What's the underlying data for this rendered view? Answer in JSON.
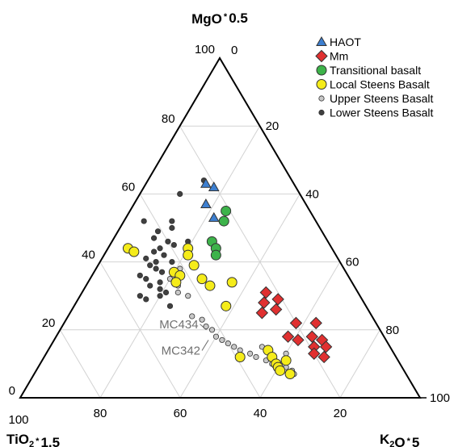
{
  "chart_data": {
    "type": "scatter",
    "subtype": "ternary",
    "title": "",
    "vertices": {
      "top": {
        "label": "MgO",
        "suffix": "0.5"
      },
      "left": {
        "label": "TiO",
        "sub": "2",
        "suffix": "1.5"
      },
      "right": {
        "label": "K",
        "sub": "2",
        "label2": "O",
        "suffix": "5"
      }
    },
    "grid": true,
    "axes": {
      "left_edge_ticks": [
        "0",
        "20",
        "40",
        "60",
        "80",
        "100"
      ],
      "right_edge_ticks": [
        "0",
        "20",
        "40",
        "60",
        "80",
        "100"
      ],
      "bottom_edge_ticks": [
        "100",
        "80",
        "60",
        "40",
        "20"
      ]
    },
    "legend_position": "top-right",
    "series": [
      {
        "name": "HAOT",
        "marker": "triangle",
        "color": "#3d7fd0",
        "points": [
          {
            "mgo": 63,
            "k2o": 15
          },
          {
            "mgo": 62,
            "k2o": 17.5
          },
          {
            "mgo": 57,
            "k2o": 18
          },
          {
            "mgo": 53,
            "k2o": 22
          }
        ]
      },
      {
        "name": "Mm",
        "marker": "diamond",
        "color": "#e03030",
        "points": [
          {
            "mgo": 31,
            "k2o": 46
          },
          {
            "mgo": 28,
            "k2o": 47
          },
          {
            "mgo": 29,
            "k2o": 50
          },
          {
            "mgo": 26,
            "k2o": 51
          },
          {
            "mgo": 25,
            "k2o": 48
          },
          {
            "mgo": 22,
            "k2o": 58
          },
          {
            "mgo": 22,
            "k2o": 63
          },
          {
            "mgo": 18,
            "k2o": 58
          },
          {
            "mgo": 17,
            "k2o": 61
          },
          {
            "mgo": 18,
            "k2o": 64
          },
          {
            "mgo": 17,
            "k2o": 67
          },
          {
            "mgo": 15,
            "k2o": 66
          },
          {
            "mgo": 13,
            "k2o": 67
          },
          {
            "mgo": 15,
            "k2o": 69
          },
          {
            "mgo": 12,
            "k2o": 70
          }
        ]
      },
      {
        "name": "Transitional basalt",
        "marker": "circle",
        "color": "#3db34a",
        "points": [
          {
            "mgo": 55,
            "k2o": 24
          },
          {
            "mgo": 52,
            "k2o": 25
          },
          {
            "mgo": 46,
            "k2o": 25
          },
          {
            "mgo": 44,
            "k2o": 27
          },
          {
            "mgo": 42,
            "k2o": 28
          }
        ]
      },
      {
        "name": "Local Steens Basalt",
        "marker": "circle",
        "color": "#f5ec1a",
        "points": [
          {
            "mgo": 44,
            "k2o": 5
          },
          {
            "mgo": 43,
            "k2o": 7
          },
          {
            "mgo": 44,
            "k2o": 20
          },
          {
            "mgo": 42,
            "k2o": 21
          },
          {
            "mgo": 39,
            "k2o": 24
          },
          {
            "mgo": 37,
            "k2o": 20
          },
          {
            "mgo": 36,
            "k2o": 22
          },
          {
            "mgo": 34,
            "k2o": 22
          },
          {
            "mgo": 35,
            "k2o": 28
          },
          {
            "mgo": 33,
            "k2o": 31
          },
          {
            "mgo": 34,
            "k2o": 36
          },
          {
            "mgo": 27,
            "k2o": 38
          },
          {
            "mgo": 12,
            "k2o": 49
          },
          {
            "mgo": 14,
            "k2o": 55
          },
          {
            "mgo": 12,
            "k2o": 57
          },
          {
            "mgo": 10,
            "k2o": 59
          },
          {
            "mgo": 9,
            "k2o": 60
          },
          {
            "mgo": 8,
            "k2o": 61
          },
          {
            "mgo": 11,
            "k2o": 61
          },
          {
            "mgo": 7,
            "k2o": 64
          }
        ]
      },
      {
        "name": "Upper  Steens Basalt",
        "marker": "circle-small",
        "color": "#c8c8c8",
        "points": [
          {
            "mgo": 38,
            "k2o": 21
          },
          {
            "mgo": 35,
            "k2o": 20
          },
          {
            "mgo": 33,
            "k2o": 23
          },
          {
            "mgo": 31,
            "k2o": 24
          },
          {
            "mgo": 30,
            "k2o": 27
          },
          {
            "mgo": 24,
            "k2o": 31
          },
          {
            "mgo": 23,
            "k2o": 34
          },
          {
            "mgo": 21,
            "k2o": 36
          },
          {
            "mgo": 20,
            "k2o": 38
          },
          {
            "mgo": 18,
            "k2o": 40
          },
          {
            "mgo": 17,
            "k2o": 42
          },
          {
            "mgo": 16,
            "k2o": 44
          },
          {
            "mgo": 15,
            "k2o": 46
          },
          {
            "mgo": 14,
            "k2o": 48
          },
          {
            "mgo": 13,
            "k2o": 51
          },
          {
            "mgo": 12,
            "k2o": 53
          },
          {
            "mgo": 11,
            "k2o": 56
          },
          {
            "mgo": 10,
            "k2o": 58
          },
          {
            "mgo": 9,
            "k2o": 62
          },
          {
            "mgo": 8,
            "k2o": 64
          },
          {
            "mgo": 7,
            "k2o": 65
          },
          {
            "mgo": 13,
            "k2o": 60
          },
          {
            "mgo": 15,
            "k2o": 53
          }
        ]
      },
      {
        "name": "Lower Steens Basalt",
        "marker": "circle-small",
        "color": "#404040",
        "points": [
          {
            "mgo": 64,
            "k2o": 14
          },
          {
            "mgo": 60,
            "k2o": 10
          },
          {
            "mgo": 52,
            "k2o": 5
          },
          {
            "mgo": 52,
            "k2o": 12
          },
          {
            "mgo": 50,
            "k2o": 13
          },
          {
            "mgo": 49,
            "k2o": 10
          },
          {
            "mgo": 47,
            "k2o": 10
          },
          {
            "mgo": 46,
            "k2o": 14
          },
          {
            "mgo": 46,
            "k2o": 19
          },
          {
            "mgo": 45,
            "k2o": 16
          },
          {
            "mgo": 44,
            "k2o": 13
          },
          {
            "mgo": 43,
            "k2o": 12
          },
          {
            "mgo": 42,
            "k2o": 15
          },
          {
            "mgo": 41,
            "k2o": 11
          },
          {
            "mgo": 40,
            "k2o": 14
          },
          {
            "mgo": 40,
            "k2o": 18
          },
          {
            "mgo": 39,
            "k2o": 13
          },
          {
            "mgo": 38,
            "k2o": 15
          },
          {
            "mgo": 37,
            "k2o": 17
          },
          {
            "mgo": 36,
            "k2o": 12
          },
          {
            "mgo": 35,
            "k2o": 14
          },
          {
            "mgo": 34,
            "k2o": 18
          },
          {
            "mgo": 33,
            "k2o": 16
          },
          {
            "mgo": 32,
            "k2o": 19
          },
          {
            "mgo": 31,
            "k2o": 21
          },
          {
            "mgo": 30,
            "k2o": 15
          },
          {
            "mgo": 29,
            "k2o": 17
          },
          {
            "mgo": 30,
            "k2o": 20
          },
          {
            "mgo": 37,
            "k2o": 21
          },
          {
            "mgo": 27,
            "k2o": 24
          }
        ]
      }
    ],
    "annotations": [
      {
        "text": "MC434",
        "mgo": 20,
        "k2o": 37
      },
      {
        "text": "MC342",
        "mgo": 17,
        "k2o": 39
      }
    ]
  }
}
